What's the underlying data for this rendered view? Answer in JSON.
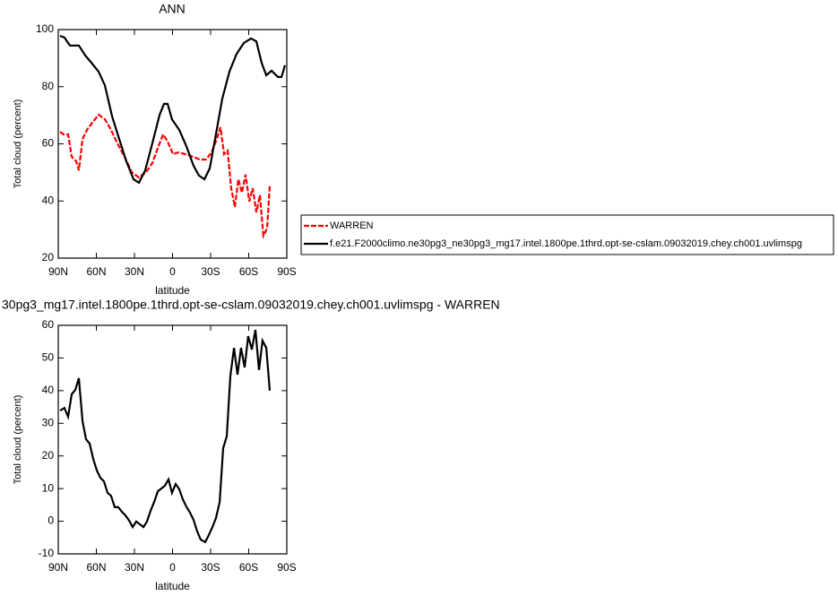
{
  "chart_data": [
    {
      "type": "line",
      "title": "ANN",
      "x_label": "latitude",
      "y_label": "Total cloud (percent)",
      "xlim": [
        90,
        -90
      ],
      "ylim": [
        20,
        100
      ],
      "xticks": [
        {
          "value": 90,
          "label": "90N"
        },
        {
          "value": 60,
          "label": "60N"
        },
        {
          "value": 30,
          "label": "30N"
        },
        0,
        {
          "value": -30,
          "label": "30S"
        },
        {
          "value": -60,
          "label": "60S"
        },
        {
          "value": -90,
          "label": "90S"
        }
      ],
      "yticks": [
        20,
        40,
        60,
        80,
        100
      ],
      "legend": "right",
      "series": [
        {
          "name": "WARREN",
          "color": "#ff0000",
          "line_style": "dashed",
          "x": [
            88.6,
            85.8,
            82.2,
            79.4,
            75.9,
            73.8,
            70.9,
            67.4,
            63.2,
            58.2,
            53.3,
            49.1,
            43.4,
            37.8,
            32.1,
            26.5,
            20.8,
            15.9,
            11.6,
            7.4,
            3.9,
            -0.4,
            -4.6,
            -10.2,
            -15.9,
            -21.5,
            -26.5,
            -30.7,
            -34.9,
            -37.8,
            -40.6,
            -43.4,
            -46.2,
            -49.1,
            -51.8,
            -54.6,
            -57.5,
            -60.4,
            -63.2,
            -66,
            -68.8,
            -71.6,
            -74.5,
            -76.6
          ],
          "values": [
            64.2,
            63.3,
            63.3,
            55.5,
            53.9,
            50.7,
            61.7,
            64.9,
            67.4,
            70.2,
            68.6,
            65.5,
            60.2,
            55.5,
            50.1,
            48.2,
            50.1,
            53.3,
            58.6,
            63.3,
            60.8,
            56.4,
            57,
            56.4,
            55.5,
            54.5,
            54.5,
            57,
            61.7,
            65.8,
            56.4,
            57.6,
            44.5,
            37.9,
            47.6,
            42.9,
            49.2,
            39.8,
            44.5,
            36,
            42,
            27.8,
            30.4,
            45.4
          ]
        },
        {
          "name": "f.e21.F2000climo.ne30pg3_ne30pg3_mg17.intel.1800pe.1thrd.opt-se-cslam.09032019.chey.ch001.uvlimspg",
          "color": "#000000",
          "line_style": "solid",
          "x": [
            88.6,
            85.1,
            80.8,
            73.8,
            68.8,
            63.9,
            58.2,
            53.3,
            47.6,
            42,
            36.4,
            30.7,
            26.5,
            21.5,
            15.9,
            10.2,
            6.7,
            3.9,
            0.4,
            -5.3,
            -10.9,
            -16.6,
            -20.8,
            -25.1,
            -29.3,
            -33.5,
            -39.2,
            -44.8,
            -50.5,
            -56.1,
            -61.8,
            -66,
            -70.2,
            -73.8,
            -78,
            -83,
            -85.8,
            -88.6
          ],
          "values": [
            97.8,
            97.2,
            94.4,
            94.4,
            91,
            88.4,
            85.3,
            80.5,
            69.6,
            61.7,
            53.9,
            47.6,
            46.4,
            50.7,
            60.2,
            70.2,
            74,
            74,
            68.6,
            64.9,
            59.2,
            52.3,
            48.9,
            47.6,
            51.4,
            61.7,
            75.8,
            85.3,
            91.5,
            95.3,
            96.9,
            95.9,
            88.4,
            84,
            85.6,
            83.4,
            83.4,
            87.5
          ]
        }
      ]
    },
    {
      "type": "line",
      "title": "30pg3_mg17.intel.1800pe.1thrd.opt-se-cslam.09032019.chey.ch001.uvlimspg - WARREN",
      "x_label": "latitude",
      "y_label": "Total cloud (percent)",
      "xlim": [
        90,
        -90
      ],
      "ylim": [
        -10,
        60
      ],
      "xticks": [
        {
          "value": 90,
          "label": "90N"
        },
        {
          "value": 60,
          "label": "60N"
        },
        {
          "value": 30,
          "label": "30N"
        },
        0,
        {
          "value": -30,
          "label": "30S"
        },
        {
          "value": -60,
          "label": "60S"
        },
        {
          "value": -90,
          "label": "90S"
        }
      ],
      "yticks": [
        -10,
        0,
        10,
        20,
        30,
        40,
        50,
        60
      ],
      "series": [
        {
          "color": "#000000",
          "line_style": "solid",
          "x": [
            88.6,
            85.1,
            82.2,
            79.4,
            76.6,
            73.8,
            70.9,
            68.1,
            65.3,
            62.5,
            59.6,
            56.8,
            54,
            51.2,
            48.4,
            45.5,
            42.7,
            39.9,
            37.1,
            34.2,
            31.4,
            28.6,
            25.8,
            22.9,
            20.1,
            17.3,
            14.5,
            11.6,
            8.8,
            6,
            3.2,
            0.4,
            -2.5,
            -5.3,
            -8.1,
            -10.9,
            -13.8,
            -16.6,
            -19.4,
            -22.2,
            -25.8,
            -28.6,
            -31.4,
            -34.2,
            -37.1,
            -39.9,
            -42.7,
            -45.5,
            -48.4,
            -51.2,
            -53.9,
            -56.8,
            -59.6,
            -62.5,
            -65.3,
            -68.1,
            -70.9,
            -73.8,
            -76.6
          ],
          "values": [
            33.9,
            34.7,
            32,
            38.9,
            40.2,
            43.8,
            30.6,
            25.1,
            23.8,
            19.1,
            15.5,
            13.3,
            12.2,
            8.7,
            7.8,
            4.3,
            4.3,
            2.9,
            1.8,
            0.2,
            -1.8,
            -0.1,
            -0.9,
            -1.8,
            -0.1,
            3.2,
            5.9,
            9.2,
            10,
            10.9,
            12.8,
            8.7,
            11.4,
            9.8,
            6.7,
            4.5,
            2.6,
            0.4,
            -3.1,
            -5.6,
            -6.4,
            -4.2,
            -1.8,
            1,
            5.9,
            22.4,
            26,
            44.4,
            53.1,
            44.9,
            53.1,
            47.1,
            56.7,
            52.6,
            58.6,
            46.3,
            55.3,
            53.1,
            40
          ]
        }
      ]
    }
  ]
}
